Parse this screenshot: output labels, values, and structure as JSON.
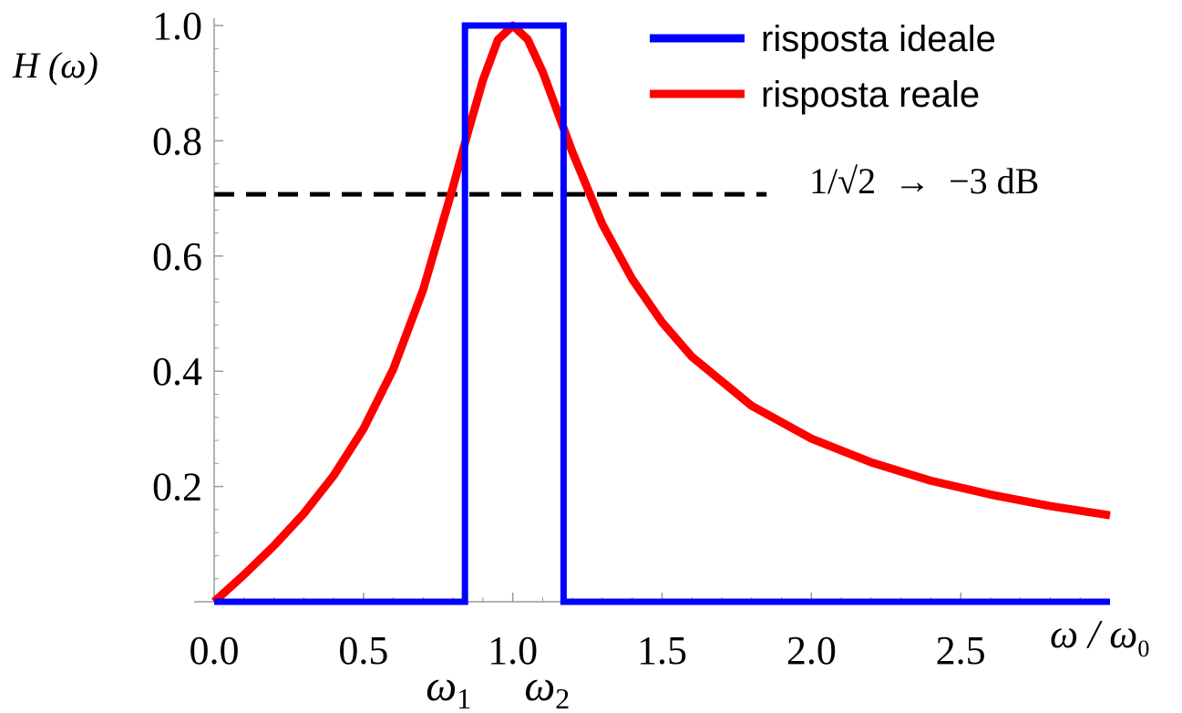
{
  "chart_data": {
    "type": "line",
    "xlabel": "ω / ω",
    "xlabel_sub": "0",
    "ylabel": "H (ω)",
    "xlim": [
      0.0,
      3.0
    ],
    "ylim": [
      0.0,
      1.0
    ],
    "x_ticks": [
      "0.0",
      "0.5",
      "1.0",
      "1.5",
      "2.0",
      "2.5"
    ],
    "x_tick_values": [
      0.0,
      0.5,
      1.0,
      1.5,
      2.0,
      2.5
    ],
    "y_ticks": [
      "0.2",
      "0.4",
      "0.6",
      "0.8",
      "1.0"
    ],
    "y_tick_values": [
      0.2,
      0.4,
      0.6,
      0.8,
      1.0
    ],
    "grid": false,
    "legend_position": "top-right",
    "series": [
      {
        "name": "risposta ideale",
        "color": "#0000ff",
        "points": [
          [
            0.0,
            0.0
          ],
          [
            0.84,
            0.0
          ],
          [
            0.84,
            1.0
          ],
          [
            1.17,
            1.0
          ],
          [
            1.17,
            0.0
          ],
          [
            3.0,
            0.0
          ]
        ]
      },
      {
        "name": "risposta reale",
        "color": "#ff0000",
        "points": [
          [
            0.0,
            0.0
          ],
          [
            0.1,
            0.047
          ],
          [
            0.2,
            0.097
          ],
          [
            0.3,
            0.153
          ],
          [
            0.4,
            0.219
          ],
          [
            0.5,
            0.3
          ],
          [
            0.6,
            0.404
          ],
          [
            0.7,
            0.542
          ],
          [
            0.8,
            0.72
          ],
          [
            0.85,
            0.815
          ],
          [
            0.9,
            0.905
          ],
          [
            0.95,
            0.975
          ],
          [
            1.0,
            1.0
          ],
          [
            1.05,
            0.976
          ],
          [
            1.1,
            0.92
          ],
          [
            1.15,
            0.85
          ],
          [
            1.2,
            0.78
          ],
          [
            1.3,
            0.655
          ],
          [
            1.4,
            0.56
          ],
          [
            1.5,
            0.485
          ],
          [
            1.6,
            0.425
          ],
          [
            1.8,
            0.34
          ],
          [
            2.0,
            0.283
          ],
          [
            2.2,
            0.242
          ],
          [
            2.4,
            0.21
          ],
          [
            2.6,
            0.186
          ],
          [
            2.8,
            0.166
          ],
          [
            3.0,
            0.15
          ]
        ]
      }
    ],
    "reference_line": {
      "y": 0.707,
      "x_end": 1.85,
      "style": "dashed",
      "color": "#000000"
    },
    "annotations": {
      "reference_label": "1/√2  →  −3 dB",
      "omega1": "ω",
      "omega1_sub": "1",
      "omega1_x": 0.84,
      "omega2": "ω",
      "omega2_sub": "2",
      "omega2_x": 1.17
    }
  }
}
